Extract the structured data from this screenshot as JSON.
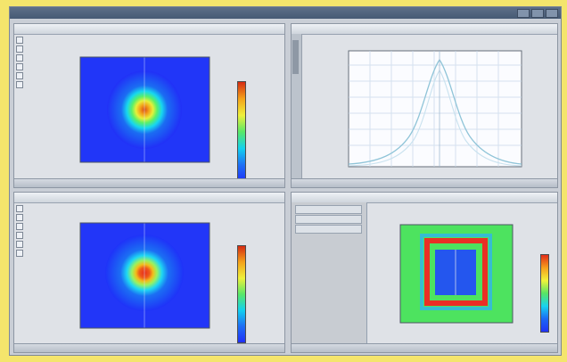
{
  "window": {
    "title": "",
    "accent": "#5d6f88"
  },
  "panes": [
    {
      "name": "top-left-2d-plot",
      "caption": "",
      "plot_title": "",
      "colorbar_title": "",
      "footer_text": ""
    },
    {
      "name": "top-right-line-plot",
      "caption": "",
      "plot_title": "",
      "footer_text": ""
    },
    {
      "name": "bottom-left-2d-plot",
      "caption": "",
      "plot_title": "",
      "colorbar_title": "",
      "footer_text": ""
    },
    {
      "name": "bottom-right-field-plot",
      "caption": "",
      "side_items": [
        "",
        "",
        ""
      ],
      "colorbar_title": "",
      "footer_text": ""
    }
  ],
  "icons": [
    "toolbar-icon",
    "window-button-icon",
    "colorbar-icon"
  ]
}
